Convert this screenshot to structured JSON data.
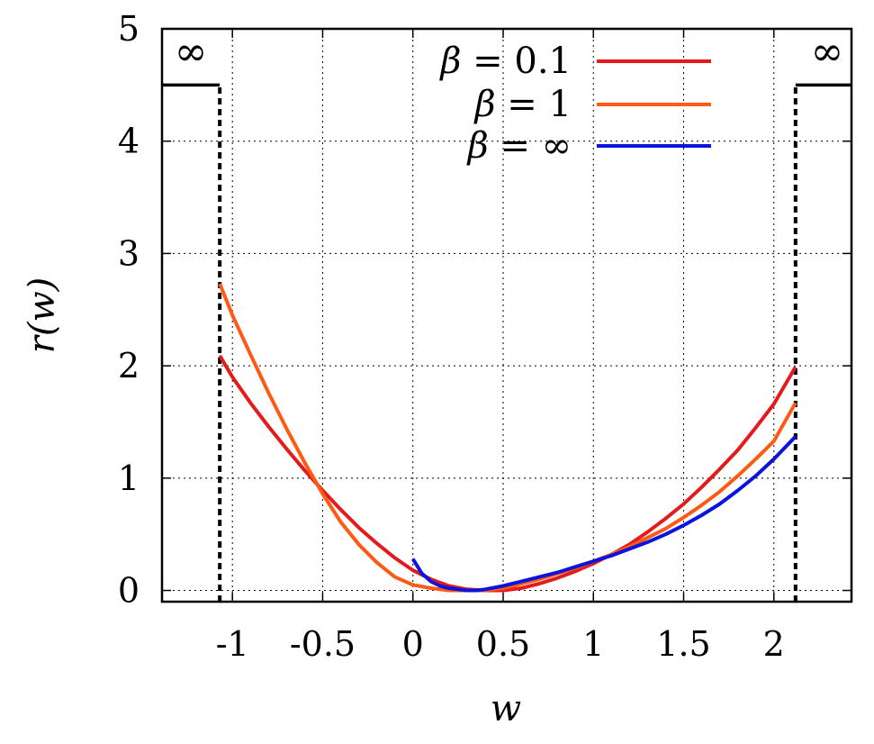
{
  "chart_data": {
    "type": "line",
    "xlabel": "w",
    "ylabel": "r(w)",
    "xlim": [
      -1.39,
      2.43
    ],
    "ylim": [
      -0.1,
      5
    ],
    "grid": true,
    "legend_position": "top-center",
    "x_ticks": [
      {
        "value": -1,
        "label": "-1"
      },
      {
        "value": -0.5,
        "label": "-0.5"
      },
      {
        "value": 0,
        "label": "0"
      },
      {
        "value": 0.5,
        "label": "0.5"
      },
      {
        "value": 1,
        "label": "1"
      },
      {
        "value": 1.5,
        "label": "1.5"
      },
      {
        "value": 2,
        "label": "2"
      }
    ],
    "y_ticks": [
      {
        "value": 0,
        "label": "0"
      },
      {
        "value": 1,
        "label": "1"
      },
      {
        "value": 2,
        "label": "2"
      },
      {
        "value": 3,
        "label": "3"
      },
      {
        "value": 4,
        "label": "4"
      },
      {
        "value": 5,
        "label": "5"
      }
    ],
    "barriers": {
      "left_x": -1.07,
      "right_x": 2.12,
      "level": 4.5,
      "label": "∞",
      "color": "#000000"
    },
    "series": [
      {
        "name": "β = 0.1",
        "name_parts": {
          "symbol": "β",
          "rest": " = 0.1"
        },
        "color": "#e41a1c",
        "x": [
          -1.07,
          -1.0,
          -0.9,
          -0.8,
          -0.7,
          -0.6,
          -0.5,
          -0.4,
          -0.3,
          -0.2,
          -0.1,
          0.0,
          0.1,
          0.2,
          0.3,
          0.4,
          0.5,
          0.6,
          0.7,
          0.8,
          0.9,
          1.0,
          1.1,
          1.2,
          1.3,
          1.4,
          1.5,
          1.6,
          1.7,
          1.8,
          1.9,
          2.0,
          2.12
        ],
        "y": [
          2.09,
          1.9,
          1.67,
          1.46,
          1.26,
          1.07,
          0.89,
          0.72,
          0.56,
          0.42,
          0.29,
          0.18,
          0.1,
          0.04,
          0.01,
          0.0,
          0.0,
          0.02,
          0.06,
          0.11,
          0.17,
          0.24,
          0.32,
          0.41,
          0.52,
          0.64,
          0.77,
          0.92,
          1.08,
          1.25,
          1.45,
          1.66,
          1.99
        ]
      },
      {
        "name": "β = 1",
        "name_parts": {
          "symbol": "β",
          "rest": " = 1"
        },
        "color": "#ff5a14",
        "x": [
          -1.07,
          -1.0,
          -0.9,
          -0.8,
          -0.7,
          -0.6,
          -0.5,
          -0.4,
          -0.3,
          -0.2,
          -0.1,
          0.0,
          0.1,
          0.2,
          0.3,
          0.4,
          0.5,
          0.6,
          0.7,
          0.8,
          0.9,
          1.0,
          1.1,
          1.2,
          1.3,
          1.4,
          1.5,
          1.6,
          1.7,
          1.8,
          1.9,
          2.0,
          2.12
        ],
        "y": [
          2.73,
          2.45,
          2.1,
          1.76,
          1.44,
          1.14,
          0.86,
          0.61,
          0.41,
          0.25,
          0.12,
          0.05,
          0.02,
          0.0,
          0.0,
          0.0,
          0.02,
          0.06,
          0.1,
          0.15,
          0.2,
          0.26,
          0.32,
          0.39,
          0.47,
          0.55,
          0.65,
          0.76,
          0.88,
          1.02,
          1.17,
          1.33,
          1.67
        ]
      },
      {
        "name": "β = ∞",
        "name_parts": {
          "symbol": "β",
          "rest": " = ∞"
        },
        "color": "#0a14dc",
        "x": [
          0.0,
          0.05,
          0.1,
          0.15,
          0.2,
          0.25,
          0.3,
          0.35,
          0.4,
          0.5,
          0.6,
          0.7,
          0.8,
          0.9,
          1.0,
          1.1,
          1.2,
          1.3,
          1.4,
          1.5,
          1.6,
          1.7,
          1.8,
          1.9,
          2.0,
          2.12
        ],
        "y": [
          0.28,
          0.15,
          0.08,
          0.04,
          0.02,
          0.01,
          0.0,
          0.0,
          0.01,
          0.04,
          0.08,
          0.12,
          0.16,
          0.21,
          0.26,
          0.31,
          0.37,
          0.43,
          0.5,
          0.58,
          0.67,
          0.77,
          0.89,
          1.02,
          1.17,
          1.37
        ]
      }
    ]
  }
}
